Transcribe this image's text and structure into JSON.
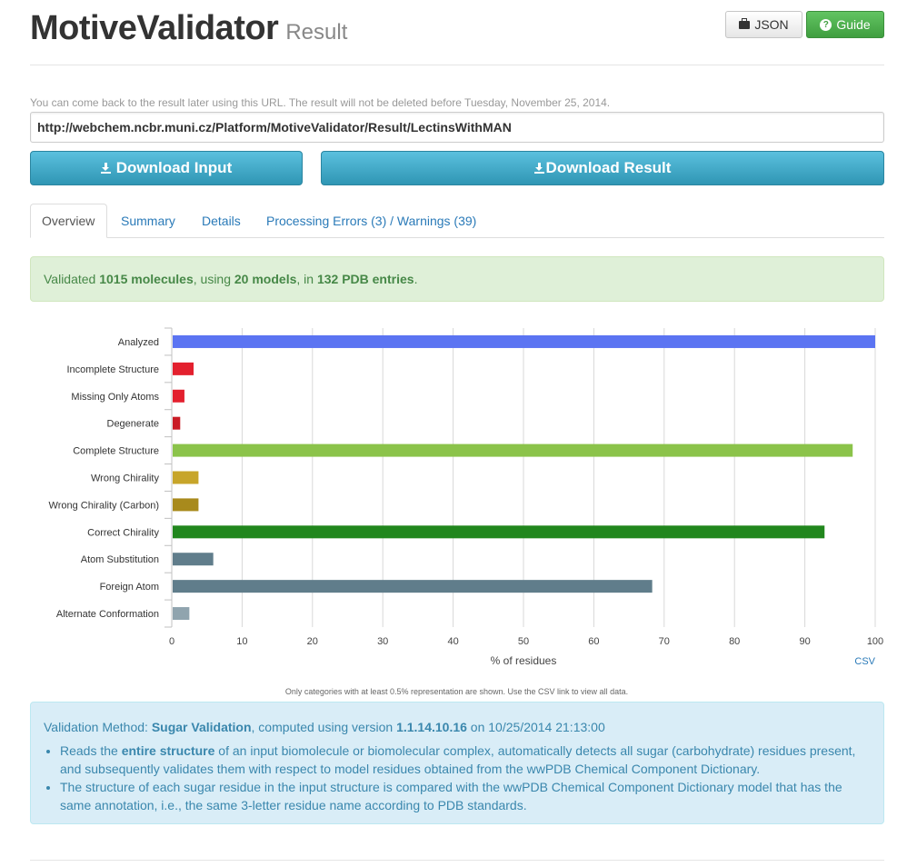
{
  "header": {
    "title": "MotiveValidator",
    "subtitle": "Result",
    "json_label": "JSON",
    "guide_label": "Guide"
  },
  "url_note": "You can come back to the result later using this URL. The result will not be deleted before Tuesday, November 25, 2014.",
  "url_value": "http://webchem.ncbr.muni.cz/Platform/MotiveValidator/Result/LectinsWithMAN",
  "download": {
    "input_label": "Download Input",
    "result_label": "Download Result"
  },
  "tabs": [
    "Overview",
    "Summary",
    "Details",
    "Processing Errors (3) / Warnings (39)"
  ],
  "summary": {
    "prefix": "Validated ",
    "molecules": "1015 molecules",
    "mid1": ", using ",
    "models": "20 models",
    "mid2": ", in ",
    "entries": "132 PDB entries",
    "suffix": "."
  },
  "chart_data": {
    "type": "bar",
    "orientation": "horizontal",
    "categories": [
      "Analyzed",
      "Incomplete Structure",
      "Missing Only Atoms",
      "Degenerate",
      "Complete Structure",
      "Wrong Chirality",
      "Wrong Chirality (Carbon)",
      "Correct Chirality",
      "Atom Substitution",
      "Foreign Atom",
      "Alternate Conformation"
    ],
    "values": [
      100,
      3.1,
      1.8,
      1.2,
      96.8,
      3.8,
      3.8,
      92.8,
      5.9,
      68.3,
      2.5
    ],
    "colors": [
      "#5b74f2",
      "#e3202e",
      "#e3202e",
      "#c91b25",
      "#8bc34a",
      "#c7a52a",
      "#a88a1c",
      "#21871d",
      "#607d8b",
      "#607d8b",
      "#90a4ae"
    ],
    "xlabel": "% of residues",
    "xlim": [
      0,
      100
    ],
    "xticks": [
      0,
      10,
      20,
      30,
      40,
      50,
      60,
      70,
      80,
      90,
      100
    ],
    "grid": true,
    "csv_label": "CSV",
    "footnote": "Only categories with at least 0.5% representation are shown. Use the CSV link to view all data."
  },
  "info": {
    "method_prefix": "Validation Method: ",
    "method_name": "Sugar Validation",
    "method_mid": ", computed using version ",
    "version": "1.1.14.10.16",
    "method_suffix": " on 10/25/2014 21:13:00",
    "b1_pre": "Reads the ",
    "b1_bold": "entire structure",
    "b1_post": " of an input biomolecule or biomolecular complex, automatically detects all sugar (carbohydrate) residues present, and subsequently validates them with respect to model residues obtained from the wwPDB Chemical Component Dictionary.",
    "b2": "The structure of each sugar residue in the input structure is compared with the wwPDB Chemical Component Dictionary model that has the same annotation, i.e., the same 3-letter residue name according to PDB standards."
  },
  "icons": {
    "json": "briefcase-icon",
    "guide": "help-circle-icon",
    "download": "download-icon"
  }
}
